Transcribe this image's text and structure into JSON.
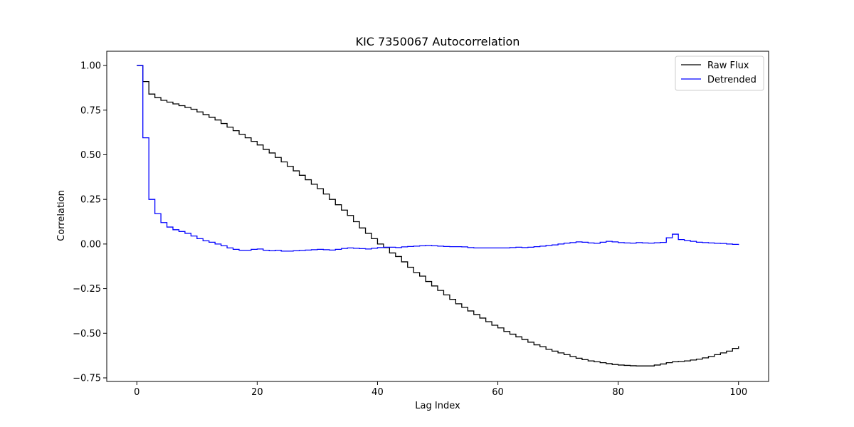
{
  "chart_data": {
    "type": "line",
    "drawstyle": "steps",
    "title": "KIC 7350067 Autocorrelation",
    "xlabel": "Lag Index",
    "ylabel": "Correlation",
    "xlim": [
      -5,
      105
    ],
    "ylim": [
      -0.77,
      1.08
    ],
    "xticks": [
      0,
      20,
      40,
      60,
      80,
      100
    ],
    "yticks": [
      -0.75,
      -0.5,
      -0.25,
      0.0,
      0.25,
      0.5,
      0.75,
      1.0
    ],
    "xtick_labels": [
      "0",
      "20",
      "40",
      "60",
      "80",
      "100"
    ],
    "ytick_labels": [
      "−0.75",
      "−0.50",
      "−0.25",
      "0.00",
      "0.25",
      "0.50",
      "0.75",
      "1.00"
    ],
    "grid": false,
    "legend_position": "top-right",
    "series": [
      {
        "name": "Raw Flux",
        "color": "#000000",
        "x": [
          0,
          1,
          2,
          3,
          4,
          5,
          6,
          7,
          8,
          9,
          10,
          11,
          12,
          13,
          14,
          15,
          16,
          17,
          18,
          19,
          20,
          21,
          22,
          23,
          24,
          25,
          26,
          27,
          28,
          29,
          30,
          31,
          32,
          33,
          34,
          35,
          36,
          37,
          38,
          39,
          40,
          41,
          42,
          43,
          44,
          45,
          46,
          47,
          48,
          49,
          50,
          51,
          52,
          53,
          54,
          55,
          56,
          57,
          58,
          59,
          60,
          61,
          62,
          63,
          64,
          65,
          66,
          67,
          68,
          69,
          70,
          71,
          72,
          73,
          74,
          75,
          76,
          77,
          78,
          79,
          80,
          81,
          82,
          83,
          84,
          85,
          86,
          87,
          88,
          89,
          90,
          91,
          92,
          93,
          94,
          95,
          96,
          97,
          98,
          99,
          100
        ],
        "y": [
          1.0,
          0.91,
          0.84,
          0.82,
          0.805,
          0.795,
          0.785,
          0.775,
          0.765,
          0.755,
          0.74,
          0.725,
          0.71,
          0.695,
          0.675,
          0.655,
          0.635,
          0.615,
          0.595,
          0.575,
          0.555,
          0.53,
          0.51,
          0.485,
          0.46,
          0.435,
          0.41,
          0.385,
          0.36,
          0.335,
          0.31,
          0.28,
          0.25,
          0.22,
          0.19,
          0.16,
          0.125,
          0.09,
          0.06,
          0.03,
          0.0,
          -0.02,
          -0.05,
          -0.07,
          -0.1,
          -0.13,
          -0.16,
          -0.18,
          -0.21,
          -0.235,
          -0.26,
          -0.285,
          -0.31,
          -0.335,
          -0.355,
          -0.375,
          -0.395,
          -0.415,
          -0.435,
          -0.455,
          -0.47,
          -0.49,
          -0.505,
          -0.52,
          -0.535,
          -0.55,
          -0.565,
          -0.575,
          -0.59,
          -0.6,
          -0.61,
          -0.62,
          -0.63,
          -0.64,
          -0.648,
          -0.655,
          -0.66,
          -0.665,
          -0.67,
          -0.675,
          -0.678,
          -0.68,
          -0.682,
          -0.683,
          -0.683,
          -0.683,
          -0.678,
          -0.672,
          -0.665,
          -0.66,
          -0.658,
          -0.655,
          -0.65,
          -0.645,
          -0.638,
          -0.63,
          -0.62,
          -0.61,
          -0.6,
          -0.585,
          -0.572
        ]
      },
      {
        "name": "Detrended",
        "color": "#0000ff",
        "x": [
          0,
          1,
          2,
          3,
          4,
          5,
          6,
          7,
          8,
          9,
          10,
          11,
          12,
          13,
          14,
          15,
          16,
          17,
          18,
          19,
          20,
          21,
          22,
          23,
          24,
          25,
          26,
          27,
          28,
          29,
          30,
          31,
          32,
          33,
          34,
          35,
          36,
          37,
          38,
          39,
          40,
          41,
          42,
          43,
          44,
          45,
          46,
          47,
          48,
          49,
          50,
          51,
          52,
          53,
          54,
          55,
          56,
          57,
          58,
          59,
          60,
          61,
          62,
          63,
          64,
          65,
          66,
          67,
          68,
          69,
          70,
          71,
          72,
          73,
          74,
          75,
          76,
          77,
          78,
          79,
          80,
          81,
          82,
          83,
          84,
          85,
          86,
          87,
          88,
          89,
          90,
          91,
          92,
          93,
          94,
          95,
          96,
          97,
          98,
          99,
          100
        ],
        "y": [
          1.0,
          0.595,
          0.25,
          0.17,
          0.12,
          0.095,
          0.08,
          0.07,
          0.06,
          0.045,
          0.03,
          0.018,
          0.01,
          0.0,
          -0.01,
          -0.022,
          -0.03,
          -0.035,
          -0.035,
          -0.03,
          -0.028,
          -0.035,
          -0.038,
          -0.035,
          -0.04,
          -0.04,
          -0.038,
          -0.036,
          -0.034,
          -0.032,
          -0.03,
          -0.032,
          -0.034,
          -0.03,
          -0.025,
          -0.022,
          -0.024,
          -0.026,
          -0.028,
          -0.024,
          -0.02,
          -0.018,
          -0.018,
          -0.02,
          -0.016,
          -0.014,
          -0.012,
          -0.01,
          -0.008,
          -0.01,
          -0.012,
          -0.014,
          -0.015,
          -0.015,
          -0.016,
          -0.02,
          -0.022,
          -0.022,
          -0.022,
          -0.022,
          -0.022,
          -0.022,
          -0.02,
          -0.018,
          -0.02,
          -0.018,
          -0.015,
          -0.012,
          -0.008,
          -0.005,
          0.0,
          0.005,
          0.008,
          0.012,
          0.01,
          0.006,
          0.004,
          0.01,
          0.015,
          0.012,
          0.008,
          0.006,
          0.005,
          0.008,
          0.006,
          0.005,
          0.007,
          0.009,
          0.035,
          0.055,
          0.025,
          0.02,
          0.015,
          0.01,
          0.008,
          0.006,
          0.004,
          0.003,
          0.0,
          -0.002,
          -0.005
        ]
      }
    ]
  }
}
